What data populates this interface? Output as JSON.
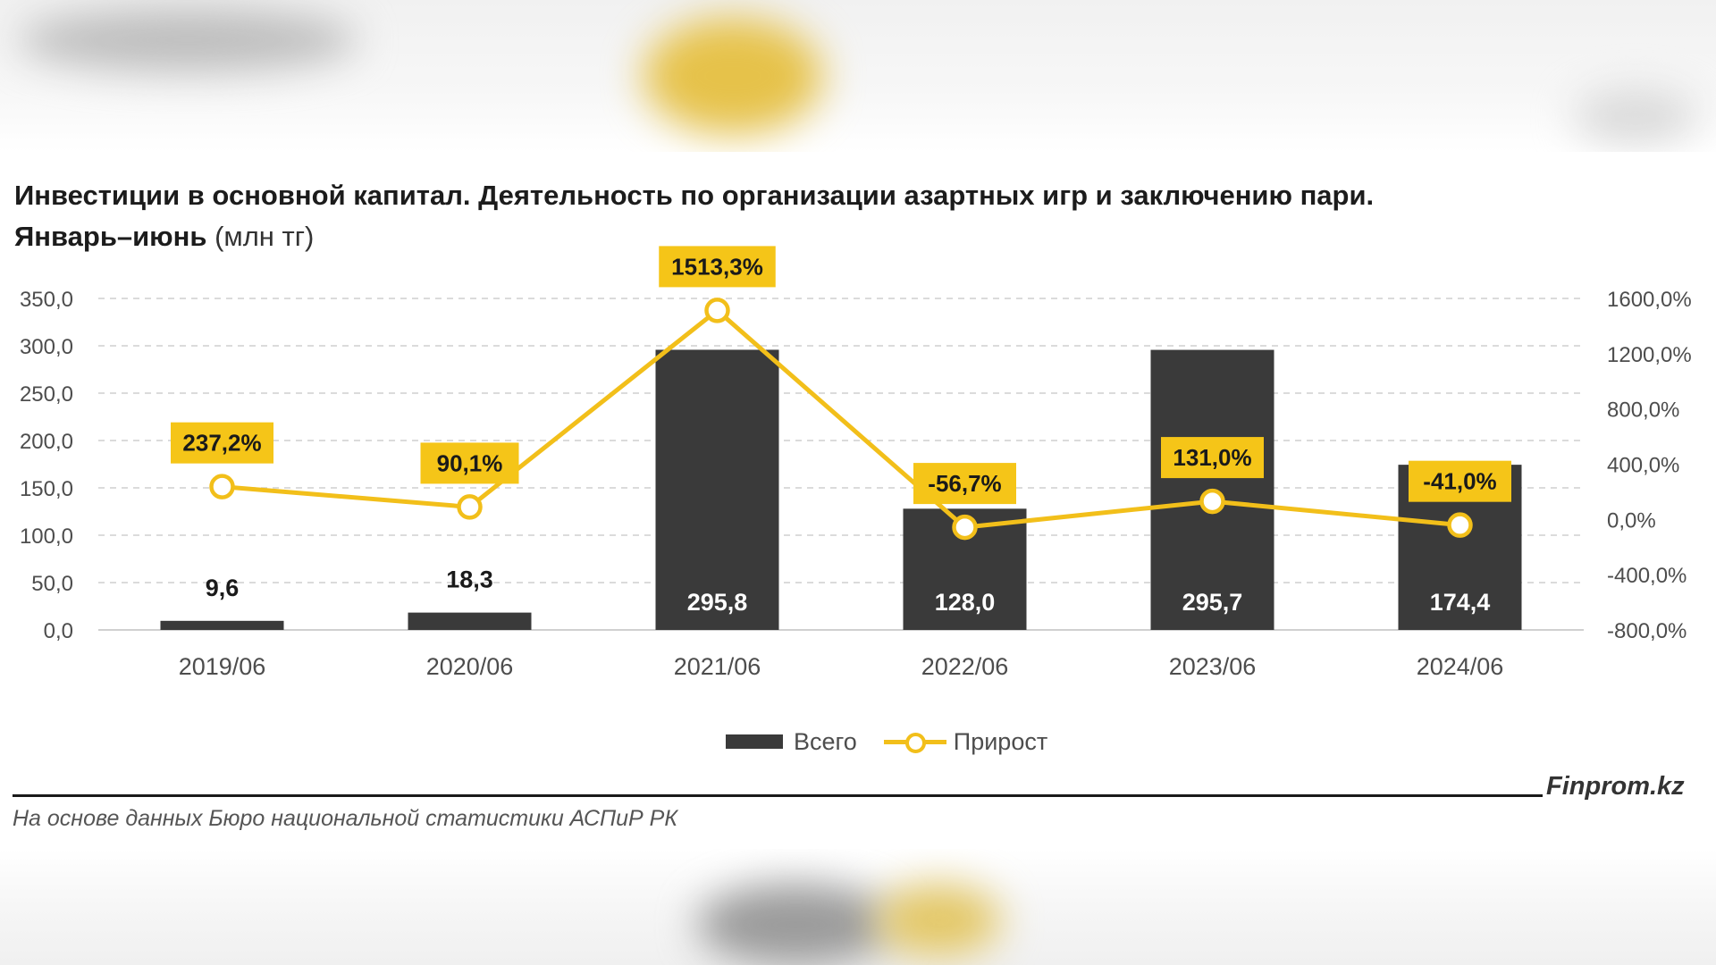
{
  "title": {
    "line1": "Инвестиции в основной капитал. Деятельность по организации азартных игр и заключению пари.",
    "line2_bold": "Январь–июнь",
    "line2_unit": "(млн тг)"
  },
  "chart_data": {
    "type": "bar",
    "categories": [
      "2019/06",
      "2020/06",
      "2021/06",
      "2022/06",
      "2023/06",
      "2024/06"
    ],
    "series": [
      {
        "name": "Всего",
        "type": "bar",
        "axis": "left",
        "values": [
          9.6,
          18.3,
          295.8,
          128.0,
          295.7,
          174.4
        ],
        "labels": [
          "9,6",
          "18,3",
          "295,8",
          "128,0",
          "295,7",
          "174,4"
        ],
        "color": "#3a3a3a"
      },
      {
        "name": "Прирост",
        "type": "line",
        "axis": "right",
        "values": [
          237.2,
          90.1,
          1513.3,
          -56.7,
          131.0,
          -41.0
        ],
        "labels": [
          "237,2%",
          "90,1%",
          "1513,3%",
          "-56,7%",
          "131,0%",
          "-41,0%"
        ],
        "color": "#f2bf1a"
      }
    ],
    "y_left": {
      "min": 0,
      "max": 350,
      "ticks": [
        "0,0",
        "50,0",
        "100,0",
        "150,0",
        "200,0",
        "250,0",
        "300,0",
        "350,0"
      ]
    },
    "y_right": {
      "min": -800,
      "max": 1600,
      "ticks": [
        "-800,0%",
        "-400,0%",
        "0,0%",
        "400,0%",
        "800,0%",
        "1200,0%",
        "1600,0%"
      ]
    },
    "grid": true,
    "legend": "bottom-center"
  },
  "legend": {
    "bar_label": "Всего",
    "line_label": "Прирост"
  },
  "footer": {
    "brand": "Finprom.kz",
    "source": "На основе данных Бюро национальной статистики АСПиР РК"
  },
  "colors": {
    "bar": "#3a3a3a",
    "line": "#f2bf1a",
    "label_box": "#f5c518"
  }
}
